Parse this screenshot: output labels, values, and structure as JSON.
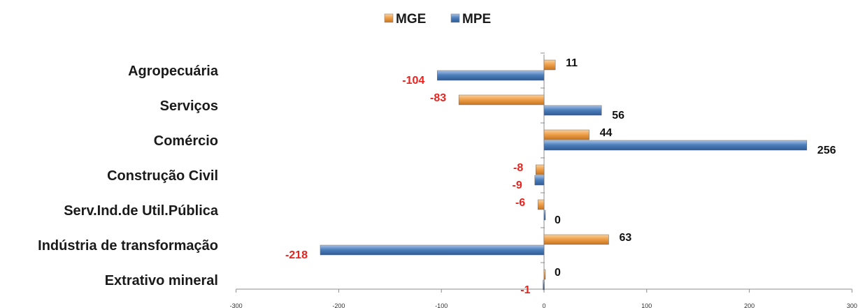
{
  "chart_data": {
    "type": "bar",
    "orientation": "horizontal",
    "title": "",
    "xlabel": "",
    "ylabel": "",
    "xlim": [
      -300,
      300
    ],
    "xticks": [
      -300,
      -200,
      -100,
      0,
      100,
      200,
      300
    ],
    "xtick_labels": [
      "-300",
      "-200",
      "-100",
      "0",
      "100",
      "200",
      "300"
    ],
    "grid": false,
    "legend_position": "top",
    "categories": [
      "Agropecuária",
      "Serviços",
      "Comércio",
      "Construção Civil",
      "Serv.Ind.de Util.Pública",
      "Indústria de transformação",
      "Extrativo mineral"
    ],
    "series": [
      {
        "name": "MGE",
        "color": "#F0A04B",
        "values": [
          11,
          -83,
          44,
          -8,
          -6,
          63,
          0
        ]
      },
      {
        "name": "MPE",
        "color": "#4F81BD",
        "values": [
          -104,
          56,
          256,
          -9,
          0,
          -218,
          -1
        ]
      }
    ],
    "label_colors": {
      "positive": "#111111",
      "negative": "#E8231E"
    }
  }
}
